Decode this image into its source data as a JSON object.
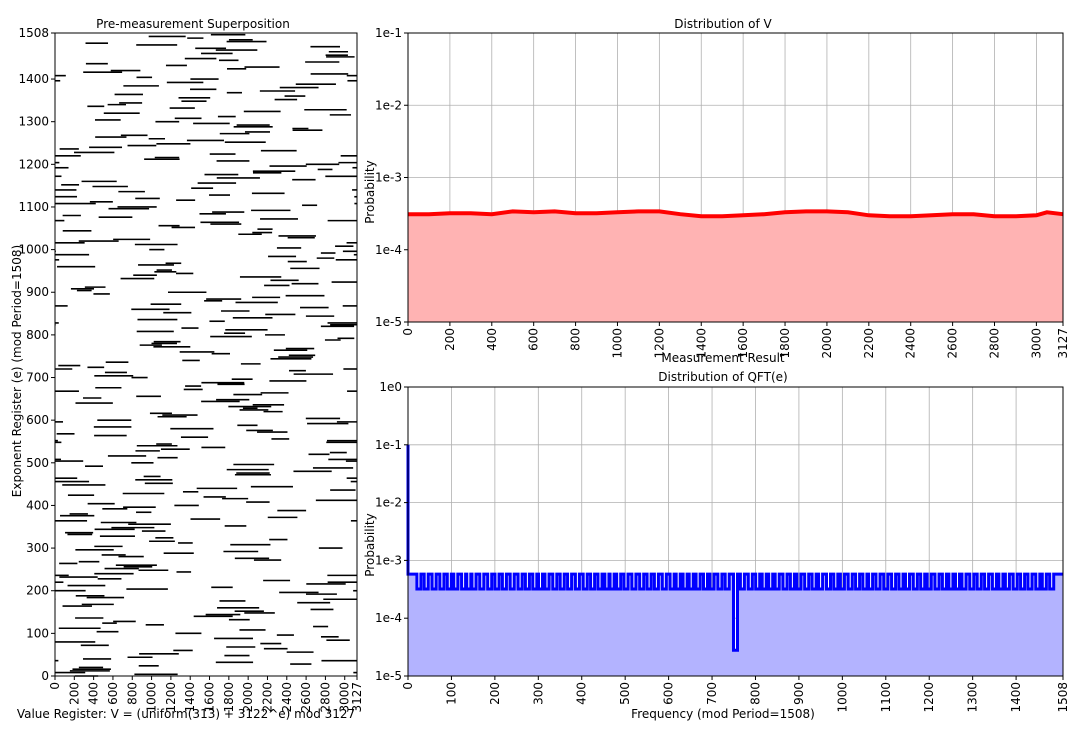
{
  "chart_data": [
    {
      "id": "superposition",
      "type": "scatter",
      "title": "Pre-measurement Superposition",
      "xlabel": "Value Register: V = (uniform(313) + 3122^e) mod 3127",
      "ylabel": "Exponent Register (e) (mod Period=1508)",
      "xlim": [
        0,
        3127
      ],
      "ylim": [
        0,
        1508
      ],
      "xticks": [
        "0",
        "200",
        "400",
        "600",
        "800",
        "1000",
        "1200",
        "1400",
        "1600",
        "1800",
        "2000",
        "2200",
        "2400",
        "2600",
        "2800",
        "3000",
        "3127"
      ],
      "yticks": [
        "0",
        "100",
        "200",
        "300",
        "400",
        "500",
        "600",
        "700",
        "800",
        "900",
        "1000",
        "1100",
        "1200",
        "1300",
        "1400",
        "1508"
      ],
      "grid": false,
      "mark_color": "#000000",
      "description_of_marks": "each exponent row e has a horizontal run of 313 consecutive values starting at (3122^e mod 3127)",
      "run_length": 313
    },
    {
      "id": "value-distribution",
      "type": "area",
      "title": "Distribution of V",
      "xlabel": "",
      "ylabel": "Probability",
      "xlim": [
        0,
        3127
      ],
      "ylim": [
        1e-05,
        0.1
      ],
      "yscale": "log",
      "xticks": [
        "0",
        "200",
        "400",
        "600",
        "800",
        "1000",
        "1200",
        "1400",
        "1600",
        "1800",
        "2000",
        "2200",
        "2400",
        "2600",
        "2800",
        "3000",
        "3127"
      ],
      "yticks": [
        "1e-5",
        "1e-4",
        "1e-3",
        "1e-2",
        "1e-1"
      ],
      "grid": true,
      "line_color": "#ff0000",
      "fill_color": "#ffb3b3",
      "x": [
        0,
        100,
        200,
        300,
        400,
        500,
        600,
        700,
        800,
        900,
        1000,
        1100,
        1200,
        1300,
        1400,
        1500,
        1600,
        1700,
        1800,
        1900,
        2000,
        2100,
        2200,
        2300,
        2400,
        2500,
        2600,
        2700,
        2800,
        2900,
        3000,
        3050,
        3127
      ],
      "values": [
        0.00031,
        0.00031,
        0.00032,
        0.00032,
        0.00031,
        0.00034,
        0.00033,
        0.00034,
        0.00032,
        0.00032,
        0.00033,
        0.00034,
        0.00034,
        0.00031,
        0.00029,
        0.00029,
        0.0003,
        0.00031,
        0.00033,
        0.00034,
        0.00034,
        0.00033,
        0.0003,
        0.00029,
        0.00029,
        0.0003,
        0.00031,
        0.00031,
        0.00029,
        0.00029,
        0.0003,
        0.00033,
        0.00031
      ]
    },
    {
      "id": "qft-distribution",
      "type": "area",
      "title": "Distribution of QFT(e)",
      "supertitle": "Measurement Result",
      "xlabel": "Frequency (mod Period=1508)",
      "ylabel": "Probability",
      "xlim": [
        0,
        1508
      ],
      "ylim": [
        1e-05,
        1
      ],
      "yscale": "log",
      "xticks": [
        "0",
        "100",
        "200",
        "300",
        "400",
        "500",
        "600",
        "700",
        "800",
        "900",
        "1000",
        "1100",
        "1200",
        "1300",
        "1400",
        "1508"
      ],
      "yticks": [
        "1e-5",
        "1e-4",
        "1e-3",
        "1e-2",
        "1e-1",
        "1e0"
      ],
      "grid": true,
      "line_color": "#0000ff",
      "fill_color": "#b3b3ff",
      "baseline_probability": 0.00058,
      "peaks": [
        {
          "x": 0,
          "value": 0.1
        },
        {
          "x": 754,
          "value": 2.8e-05
        }
      ],
      "dip_value": 0.00032,
      "dip_positions": [
        0,
        25,
        42,
        60,
        78,
        95,
        110,
        128,
        140,
        152,
        170,
        188,
        205,
        222,
        240,
        258,
        275,
        292,
        305,
        320,
        338,
        355,
        372,
        390,
        408,
        425,
        442,
        458,
        470,
        485,
        502,
        520,
        538,
        555,
        572,
        590,
        608,
        622,
        638,
        652,
        668,
        685,
        700,
        718,
        735,
        754,
        770,
        788,
        805,
        820,
        835,
        850,
        868,
        885,
        900,
        918,
        935,
        950,
        968,
        985,
        1000,
        1018,
        1035,
        1052,
        1065,
        1082,
        1100,
        1118,
        1135,
        1150,
        1168,
        1185,
        1200,
        1218,
        1235,
        1250,
        1265,
        1280,
        1298,
        1315,
        1332,
        1350,
        1365,
        1380,
        1398,
        1415,
        1432,
        1450,
        1465,
        1482
      ]
    }
  ]
}
